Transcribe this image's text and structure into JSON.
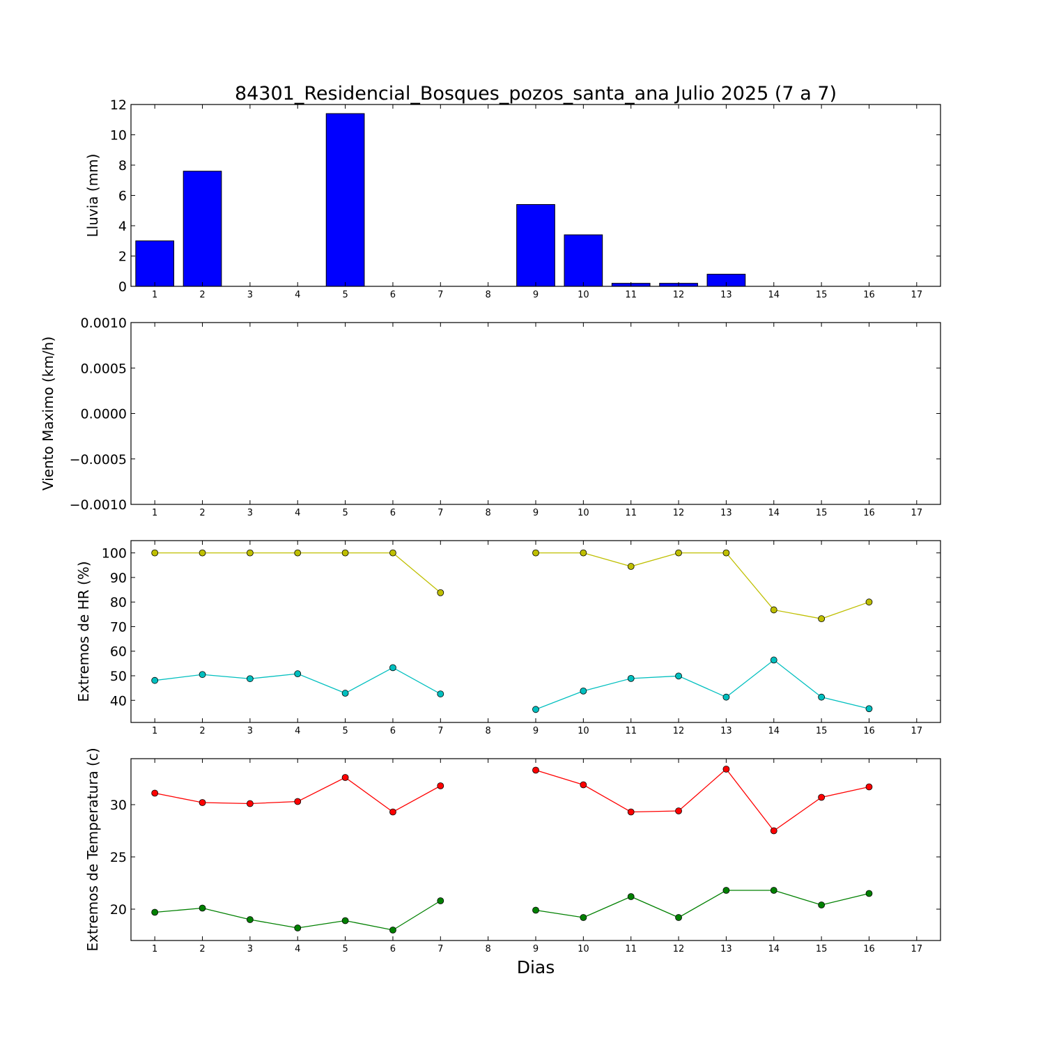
{
  "title": "84301_Residencial_Bosques_pozos_santa_ana Julio 2025  (7 a 7)",
  "xlabel": "Dias",
  "chart_data": [
    {
      "type": "bar",
      "ylabel": "Lluvia (mm)",
      "ylim": [
        0,
        12
      ],
      "yticks": [
        0,
        2,
        4,
        6,
        8,
        10,
        12
      ],
      "ytick_labels": [
        "0",
        "2",
        "4",
        "6",
        "8",
        "10",
        "12"
      ],
      "xlim": [
        0.5,
        17.5
      ],
      "xticks": [
        1,
        2,
        3,
        4,
        5,
        6,
        7,
        8,
        9,
        10,
        11,
        12,
        13,
        14,
        15,
        16,
        17
      ],
      "color": "#0000ff",
      "series": [
        {
          "x": [
            1,
            2,
            3,
            4,
            5,
            6,
            7,
            8,
            9,
            10,
            11,
            12,
            13,
            14,
            15,
            16,
            17
          ],
          "values": [
            3.0,
            7.6,
            0,
            0,
            11.4,
            0,
            0,
            null,
            5.4,
            3.4,
            0.2,
            0.2,
            0.8,
            0,
            0,
            0,
            null
          ]
        }
      ]
    },
    {
      "type": "line",
      "ylabel": "Viento Maximo (km/h)",
      "ylim": [
        -0.001,
        0.001
      ],
      "yticks": [
        -0.001,
        -0.0005,
        0,
        0.0005,
        0.001
      ],
      "ytick_labels": [
        "−0.0010",
        "−0.0005",
        "0.0000",
        "0.0005",
        "0.0010"
      ],
      "xlim": [
        0.5,
        17.5
      ],
      "xticks": [
        1,
        2,
        3,
        4,
        5,
        6,
        7,
        8,
        9,
        10,
        11,
        12,
        13,
        14,
        15,
        16,
        17
      ],
      "series": []
    },
    {
      "type": "line",
      "ylabel": "Extremos de HR (%)",
      "ylim": [
        31,
        105
      ],
      "yticks": [
        40,
        50,
        60,
        70,
        80,
        90,
        100
      ],
      "ytick_labels": [
        "40",
        "50",
        "60",
        "70",
        "80",
        "90",
        "100"
      ],
      "xlim": [
        0.5,
        17.5
      ],
      "xticks": [
        1,
        2,
        3,
        4,
        5,
        6,
        7,
        8,
        9,
        10,
        11,
        12,
        13,
        14,
        15,
        16,
        17
      ],
      "series": [
        {
          "color": "#bfbf00",
          "x": [
            1,
            2,
            3,
            4,
            5,
            6,
            7,
            8,
            9,
            10,
            11,
            12,
            13,
            14,
            15,
            16
          ],
          "values": [
            100,
            100,
            100,
            100,
            100,
            100,
            83.8,
            null,
            100,
            100,
            94.5,
            100,
            100,
            76.8,
            73.2,
            80.0
          ]
        },
        {
          "color": "#00bfbf",
          "x": [
            1,
            2,
            3,
            4,
            5,
            6,
            7,
            8,
            9,
            10,
            11,
            12,
            13,
            14,
            15,
            16
          ],
          "values": [
            48.1,
            50.5,
            48.8,
            50.8,
            42.9,
            53.3,
            42.6,
            null,
            36.3,
            43.8,
            48.9,
            49.9,
            41.3,
            56.4,
            41.3,
            36.6
          ]
        }
      ]
    },
    {
      "type": "line",
      "ylabel": "Extremos de Temperatura (c)",
      "ylim": [
        17,
        34.4
      ],
      "yticks": [
        20,
        25,
        30
      ],
      "ytick_labels": [
        "20",
        "25",
        "30"
      ],
      "xlim": [
        0.5,
        17.5
      ],
      "xticks": [
        1,
        2,
        3,
        4,
        5,
        6,
        7,
        8,
        9,
        10,
        11,
        12,
        13,
        14,
        15,
        16,
        17
      ],
      "series": [
        {
          "color": "#ff0000",
          "x": [
            1,
            2,
            3,
            4,
            5,
            6,
            7,
            8,
            9,
            10,
            11,
            12,
            13,
            14,
            15,
            16
          ],
          "values": [
            31.1,
            30.2,
            30.1,
            30.3,
            32.6,
            29.3,
            31.8,
            null,
            33.3,
            31.9,
            29.3,
            29.4,
            33.4,
            27.5,
            30.7,
            31.7
          ]
        },
        {
          "color": "#008000",
          "x": [
            1,
            2,
            3,
            4,
            5,
            6,
            7,
            8,
            9,
            10,
            11,
            12,
            13,
            14,
            15,
            16
          ],
          "values": [
            19.7,
            20.1,
            19.0,
            18.2,
            18.9,
            18.0,
            20.8,
            null,
            19.9,
            19.2,
            21.2,
            19.2,
            21.8,
            21.8,
            20.4,
            21.5
          ]
        }
      ]
    }
  ]
}
